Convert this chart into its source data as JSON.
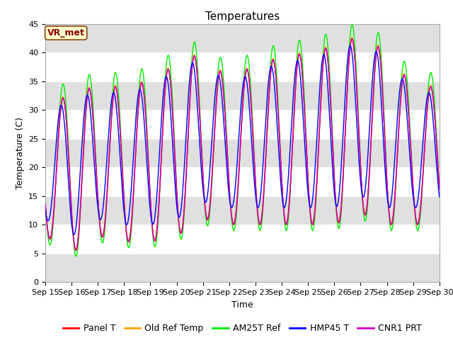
{
  "title": "Temperatures",
  "xlabel": "Time",
  "ylabel": "Temperature (C)",
  "ylim": [
    0,
    45
  ],
  "annotation": "VR_met",
  "series_colors": {
    "Panel T": "#ff0000",
    "Old Ref Temp": "#ffa500",
    "AM25T Ref": "#00ee00",
    "HMP45 T": "#0000ff",
    "CNR1 PRT": "#cc00cc"
  },
  "fig_bg": "#ffffff",
  "axes_bg": "#ffffff",
  "band_color": "#e0e0e0",
  "title_fontsize": 11,
  "axis_fontsize": 9,
  "tick_fontsize": 8,
  "legend_fontsize": 9,
  "min_temps": [
    8,
    5,
    8,
    7,
    7,
    8,
    11,
    10,
    10,
    10,
    10,
    10,
    12,
    10,
    10
  ],
  "max_temps": [
    30,
    33,
    34,
    34,
    35,
    38,
    40,
    35,
    38,
    39,
    40,
    41,
    43,
    40,
    34
  ],
  "n_days": 15,
  "pts_per_day": 96
}
